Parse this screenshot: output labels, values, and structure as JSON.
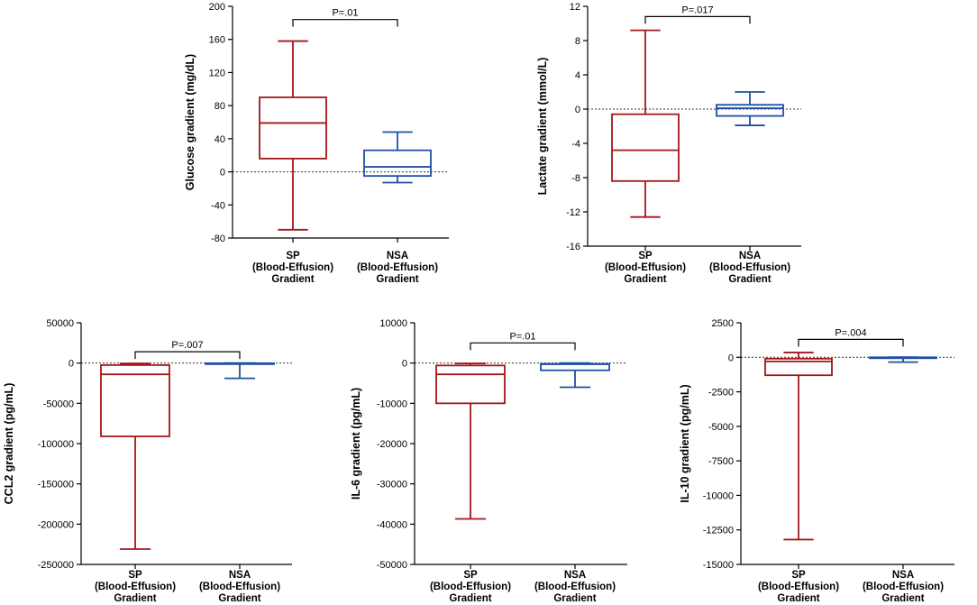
{
  "colors": {
    "sp": "#a3161a",
    "nsa": "#1f4fa3",
    "axis": "#000000",
    "zero_line": "#333333"
  },
  "chart_data": [
    {
      "id": "glucose",
      "type": "box",
      "ylabel": "Glucose gradient (mg/dL)",
      "ylim": [
        -80,
        200
      ],
      "yticks": [
        "200",
        "160",
        "120",
        "80",
        "40",
        "0",
        "-40",
        "-80"
      ],
      "ytick_values": [
        200,
        160,
        120,
        80,
        40,
        0,
        -40,
        -80
      ],
      "categories": [
        [
          "SP",
          "(Blood-Effusion)",
          "Gradient"
        ],
        [
          "NSA",
          "(Blood-Effusion)",
          "Gradient"
        ]
      ],
      "series": [
        {
          "name": "SP",
          "min": -70,
          "q1": 16,
          "median": 59,
          "q3": 90,
          "max": 158,
          "color": "#a3161a"
        },
        {
          "name": "NSA",
          "min": -13,
          "q1": -5,
          "median": 6,
          "q3": 26,
          "max": 48,
          "color": "#1f4fa3"
        }
      ],
      "p_value": "P=.01",
      "p_bracket_y": 184,
      "zero_line": 0
    },
    {
      "id": "lactate",
      "type": "box",
      "ylabel": "Lactate gradient (mmol/L)",
      "ylim": [
        -16,
        12
      ],
      "yticks": [
        "12",
        "8",
        "4",
        "0",
        "-4",
        "-8",
        "-12",
        "-16"
      ],
      "ytick_values": [
        12,
        8,
        4,
        0,
        -4,
        -8,
        -12,
        -16
      ],
      "categories": [
        [
          "SP",
          "(Blood-Effusion)",
          "Gradient"
        ],
        [
          "NSA",
          "(Blood-Effusion)",
          "Gradient"
        ]
      ],
      "series": [
        {
          "name": "SP",
          "min": -12.6,
          "q1": -8.4,
          "median": -4.8,
          "q3": -0.6,
          "max": 9.2,
          "color": "#a3161a"
        },
        {
          "name": "NSA",
          "min": -1.9,
          "q1": -0.8,
          "median": 0.1,
          "q3": 0.5,
          "max": 2.0,
          "color": "#1f4fa3"
        }
      ],
      "p_value": "P=.017",
      "p_bracket_y": 10.8,
      "zero_line": 0
    },
    {
      "id": "ccl2",
      "type": "box",
      "ylabel": "CCL2 gradient (pg/mL)",
      "ylim": [
        -250000,
        50000
      ],
      "yticks": [
        "50000",
        "0",
        "-50000",
        "-100000",
        "-150000",
        "-200000",
        "-250000"
      ],
      "ytick_values": [
        50000,
        0,
        -50000,
        -100000,
        -150000,
        -200000,
        -250000
      ],
      "categories": [
        [
          "SP",
          "(Blood-Effusion)",
          "Gradient"
        ],
        [
          "NSA",
          "(Blood-Effusion)",
          "Gradient"
        ]
      ],
      "series": [
        {
          "name": "SP",
          "min": -231000,
          "q1": -91000,
          "median": -14000,
          "q3": -2500,
          "max": -500,
          "color": "#a3161a"
        },
        {
          "name": "NSA",
          "min": -19000,
          "q1": -1200,
          "median": -500,
          "q3": -200,
          "max": 0,
          "color": "#1f4fa3"
        }
      ],
      "p_value": "P=.007",
      "p_bracket_y": 14000,
      "zero_line": 0
    },
    {
      "id": "il6",
      "type": "box",
      "ylabel": "IL-6 gradient (pg/mL)",
      "ylim": [
        -50000,
        10000
      ],
      "yticks": [
        "10000",
        "0",
        "-10000",
        "-20000",
        "-30000",
        "-40000",
        "-50000"
      ],
      "ytick_values": [
        10000,
        0,
        -10000,
        -20000,
        -30000,
        -40000,
        -50000
      ],
      "categories": [
        [
          "SP",
          "(Blood-Effusion)",
          "Gradient"
        ],
        [
          "NSA",
          "(Blood-Effusion)",
          "Gradient"
        ]
      ],
      "series": [
        {
          "name": "SP",
          "min": -38700,
          "q1": -10000,
          "median": -2800,
          "q3": -600,
          "max": -100,
          "color": "#a3161a"
        },
        {
          "name": "NSA",
          "min": -6000,
          "q1": -1800,
          "median": -300,
          "q3": -200,
          "max": 0,
          "color": "#1f4fa3"
        }
      ],
      "p_value": "P=.01",
      "p_bracket_y": 5000,
      "zero_line": 0
    },
    {
      "id": "il10",
      "type": "box",
      "ylabel": "IL-10 gradient (pg/mL)",
      "ylim": [
        -15000,
        2500
      ],
      "yticks": [
        "2500",
        "0",
        "-2500",
        "-5000",
        "-7500",
        "-10000",
        "-12500",
        "-15000"
      ],
      "ytick_values": [
        2500,
        0,
        -2500,
        -5000,
        -7500,
        -10000,
        -12500,
        -15000
      ],
      "categories": [
        [
          "SP",
          "(Blood-Effusion)",
          "Gradient"
        ],
        [
          "NSA",
          "(Blood-Effusion)",
          "Gradient"
        ]
      ],
      "series": [
        {
          "name": "SP",
          "min": -13200,
          "q1": -1300,
          "median": -300,
          "q3": -100,
          "max": 350,
          "color": "#a3161a"
        },
        {
          "name": "NSA",
          "min": -350,
          "q1": -50,
          "median": -10,
          "q3": 0,
          "max": 10,
          "color": "#1f4fa3"
        }
      ],
      "p_value": "P=.004",
      "p_bracket_y": 1300,
      "zero_line": 0
    }
  ]
}
